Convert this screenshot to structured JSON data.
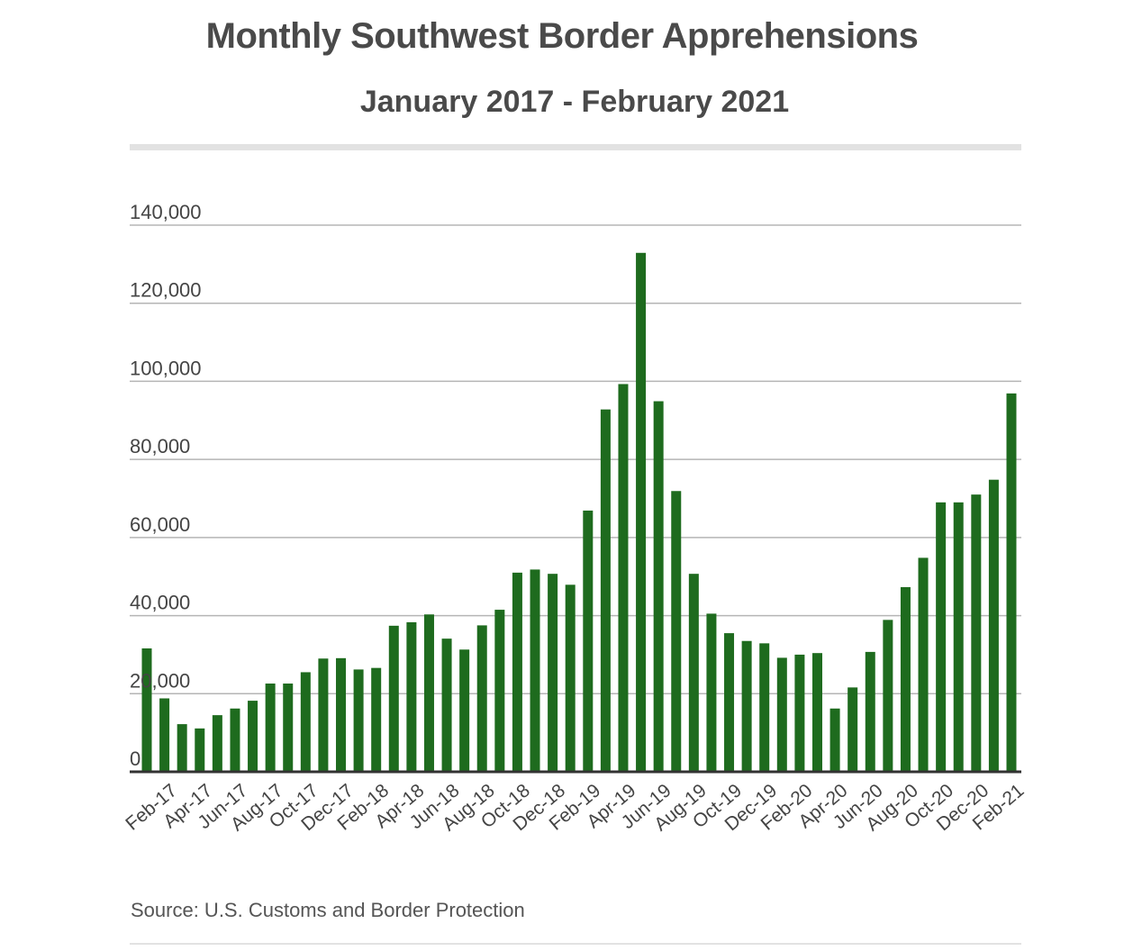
{
  "chart_data": {
    "type": "bar",
    "title": "Monthly Southwest Border Apprehensions",
    "subtitle": "January 2017 - February 2021",
    "xlabel": "",
    "ylabel": "",
    "ylim": [
      0,
      140000
    ],
    "yticks": [
      0,
      20000,
      40000,
      60000,
      80000,
      100000,
      120000,
      140000
    ],
    "ytick_labels": [
      "0",
      "20,000",
      "40,000",
      "60,000",
      "80,000",
      "100,000",
      "120,000",
      "140,000"
    ],
    "grid": true,
    "bar_color": "#1e6b1e",
    "categories": [
      "Jan-17",
      "Feb-17",
      "Mar-17",
      "Apr-17",
      "May-17",
      "Jun-17",
      "Jul-17",
      "Aug-17",
      "Sep-17",
      "Oct-17",
      "Nov-17",
      "Dec-17",
      "Jan-18",
      "Feb-18",
      "Mar-18",
      "Apr-18",
      "May-18",
      "Jun-18",
      "Jul-18",
      "Aug-18",
      "Sep-18",
      "Oct-18",
      "Nov-18",
      "Dec-18",
      "Jan-19",
      "Feb-19",
      "Mar-19",
      "Apr-19",
      "May-19",
      "Jun-19",
      "Jul-19",
      "Aug-19",
      "Sep-19",
      "Oct-19",
      "Nov-19",
      "Dec-19",
      "Jan-20",
      "Feb-20",
      "Mar-20",
      "Apr-20",
      "May-20",
      "Jun-20",
      "Jul-20",
      "Aug-20",
      "Sep-20",
      "Oct-20",
      "Nov-20",
      "Dec-20",
      "Jan-21",
      "Feb-21"
    ],
    "values": [
      31600,
      18800,
      12200,
      11100,
      14500,
      16200,
      18200,
      22600,
      22600,
      25500,
      29000,
      29100,
      26200,
      26600,
      37400,
      38300,
      40300,
      34100,
      31300,
      37500,
      41500,
      51000,
      51800,
      50700,
      47900,
      66900,
      92800,
      99300,
      132900,
      94900,
      71900,
      50700,
      40500,
      35500,
      33500,
      32900,
      29200,
      30000,
      30400,
      16200,
      21600,
      30700,
      38900,
      47300,
      54800,
      69000,
      69000,
      71000,
      74800,
      96900
    ],
    "xtick_labels": [
      "Feb-17",
      "Apr-17",
      "Jun-17",
      "Aug-17",
      "Oct-17",
      "Dec-17",
      "Feb-18",
      "Apr-18",
      "Jun-18",
      "Aug-18",
      "Oct-18",
      "Dec-18",
      "Feb-19",
      "Apr-19",
      "Jun-19",
      "Aug-19",
      "Oct-19",
      "Dec-19",
      "Feb-20",
      "Apr-20",
      "Jun-20",
      "Aug-20",
      "Oct-20",
      "Dec-20",
      "Feb-21"
    ],
    "source": "Source: U.S. Customs and Border Protection"
  }
}
